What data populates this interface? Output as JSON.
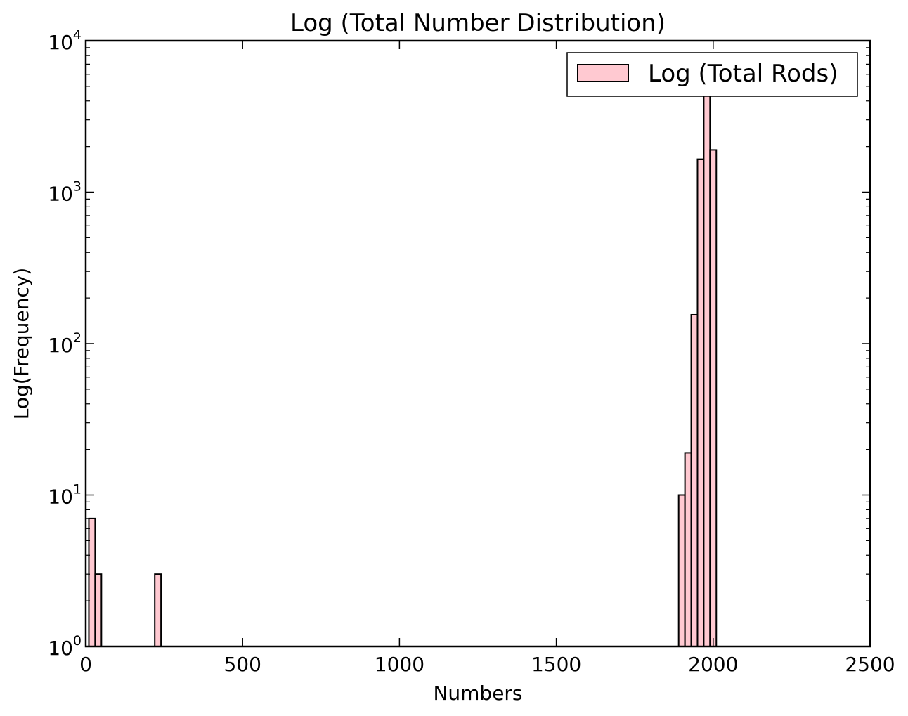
{
  "chart_data": {
    "type": "bar",
    "title": "Log (Total Number Distribution)",
    "xlabel": "Numbers",
    "ylabel": "Log(Frequency)",
    "x_scale": "linear",
    "y_scale": "log",
    "xlim": [
      0,
      2500
    ],
    "ylim": [
      1,
      10000
    ],
    "grid": false,
    "legend_position": "upper right",
    "x_ticks": [
      0,
      500,
      1000,
      1500,
      2000,
      2500
    ],
    "x_tick_labels": [
      "0",
      "500",
      "1000",
      "1500",
      "2000",
      "2500"
    ],
    "y_ticks": [
      1,
      10,
      100,
      1000,
      10000
    ],
    "y_tick_labels": [
      {
        "base": "10",
        "exp": "0"
      },
      {
        "base": "10",
        "exp": "1"
      },
      {
        "base": "10",
        "exp": "2"
      },
      {
        "base": "10",
        "exp": "3"
      },
      {
        "base": "10",
        "exp": "4"
      }
    ],
    "series": [
      {
        "name": "Log (Total Rods)",
        "color": "#ffc9d1",
        "edge_color": "#000000",
        "bin_width": 20,
        "bins": [
          {
            "x0": 10,
            "count": 7
          },
          {
            "x0": 30,
            "count": 3
          },
          {
            "x0": 50,
            "count": 1
          },
          {
            "x0": 210,
            "count": 1
          },
          {
            "x0": 220,
            "count": 3
          },
          {
            "x0": 1890,
            "count": 10
          },
          {
            "x0": 1910,
            "count": 19
          },
          {
            "x0": 1930,
            "count": 155
          },
          {
            "x0": 1950,
            "count": 1650
          },
          {
            "x0": 1970,
            "count": 6200
          },
          {
            "x0": 1990,
            "count": 1900
          }
        ]
      }
    ]
  }
}
